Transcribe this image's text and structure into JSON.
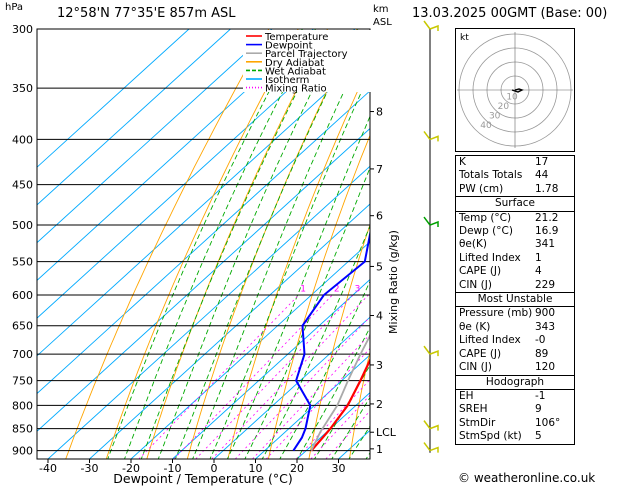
{
  "header": {
    "location": "12°58'N  77°35'E  857m  ASL",
    "datetime": "13.03.2025  00GMT  (Base: 00)",
    "pressure_unit": "hPa",
    "height_unit_km": "km",
    "height_unit_asl": "ASL"
  },
  "chart_data": {
    "type": "line",
    "xlabel": "Dewpoint / Temperature (°C)",
    "ylabel_right": "Mixing Ratio (g/kg)",
    "x_ticks": [
      "-40",
      "-30",
      "-20",
      "-10",
      "0",
      "10",
      "20",
      "30"
    ],
    "xlim": [
      -42,
      38
    ],
    "pressure_levels": [
      "300",
      "350",
      "400",
      "450",
      "500",
      "550",
      "600",
      "650",
      "700",
      "750",
      "800",
      "850",
      "900"
    ],
    "plim": [
      300,
      920
    ],
    "height_km_ticks": [
      {
        "label": "8",
        "p": 372
      },
      {
        "label": "7",
        "p": 432
      },
      {
        "label": "6",
        "p": 488
      },
      {
        "label": "5",
        "p": 557
      },
      {
        "label": "4",
        "p": 633
      },
      {
        "label": "3",
        "p": 720
      },
      {
        "label": "2",
        "p": 797
      },
      {
        "label": "LCL",
        "p": 858
      },
      {
        "label": "1",
        "p": 896
      }
    ],
    "mixing_ratio_labels": [
      {
        "label": "1",
        "g": 1
      },
      {
        "label": "2",
        "g": 2
      },
      {
        "label": "3",
        "g": 3
      },
      {
        "label": "4",
        "g": 4
      },
      {
        "label": "6",
        "g": 6
      },
      {
        "label": "8",
        "g": 8
      },
      {
        "label": "10",
        "g": 10
      },
      {
        "label": "16",
        "g": 16
      },
      {
        "label": "20",
        "g": 20
      },
      {
        "label": "25",
        "g": 25
      }
    ],
    "legend": [
      "Temperature",
      "Dewpoint",
      "Parcel Trajectory",
      "Dry Adiabat",
      "Wet Adiabat",
      "Isotherm",
      "Mixing Ratio"
    ],
    "colors": {
      "temperature": "#ff0000",
      "dewpoint": "#0000ff",
      "parcel": "#aaaaaa",
      "dry_adiabat": "#ffa500",
      "wet_adiabat": "#00aa00",
      "isotherm": "#00aaff",
      "mixing_ratio": "#ff00ff"
    },
    "series": [
      {
        "name": "Temperature",
        "points": [
          [
            21.2,
            900
          ],
          [
            20.5,
            870
          ],
          [
            20.0,
            850
          ],
          [
            18.0,
            800
          ],
          [
            14.5,
            750
          ],
          [
            10.5,
            700
          ],
          [
            6.5,
            650
          ],
          [
            2.5,
            600
          ],
          [
            -2.5,
            550
          ],
          [
            -7.5,
            500
          ],
          [
            -13.0,
            450
          ],
          [
            -19.0,
            400
          ],
          [
            -26.5,
            350
          ],
          [
            -34.0,
            305
          ]
        ]
      },
      {
        "name": "Dewpoint",
        "points": [
          [
            16.9,
            900
          ],
          [
            15.5,
            870
          ],
          [
            14.0,
            850
          ],
          [
            9.0,
            800
          ],
          [
            -1.0,
            750
          ],
          [
            -6.0,
            700
          ],
          [
            -14.0,
            650
          ],
          [
            -17.0,
            600
          ],
          [
            -16.0,
            550
          ],
          [
            -24.0,
            500
          ],
          [
            -33.0,
            450
          ],
          [
            -38.0,
            400
          ],
          [
            -41.0,
            350
          ],
          [
            -27.0,
            300
          ]
        ]
      },
      {
        "name": "Parcel Trajectory",
        "points": [
          [
            21.2,
            900
          ],
          [
            18.5,
            858
          ],
          [
            15.5,
            800
          ],
          [
            11.5,
            750
          ],
          [
            7.5,
            700
          ],
          [
            3.5,
            650
          ],
          [
            -1.0,
            600
          ],
          [
            -5.5,
            550
          ],
          [
            -10.5,
            500
          ],
          [
            -16.0,
            450
          ],
          [
            -22.0,
            400
          ],
          [
            -29.0,
            350
          ],
          [
            -37.0,
            305
          ]
        ]
      }
    ]
  },
  "hodograph": {
    "label": "kt",
    "ring_labels": [
      "10",
      "20",
      "30",
      "40"
    ]
  },
  "indices": [
    {
      "label": "K",
      "value": "17"
    },
    {
      "label": "Totals Totals",
      "value": "44"
    },
    {
      "label": "PW (cm)",
      "value": "1.78"
    }
  ],
  "surface": {
    "title": "Surface",
    "rows": [
      {
        "label": "Temp (°C)",
        "value": "21.2"
      },
      {
        "label": "Dewp (°C)",
        "value": "16.9"
      },
      {
        "label": "θe(K)",
        "value": "341"
      },
      {
        "label": "Lifted Index",
        "value": "1"
      },
      {
        "label": "CAPE (J)",
        "value": "4"
      },
      {
        "label": "CIN (J)",
        "value": "229"
      }
    ]
  },
  "most_unstable": {
    "title": "Most Unstable",
    "rows": [
      {
        "label": "Pressure (mb)",
        "value": "900"
      },
      {
        "label": "θe (K)",
        "value": "343"
      },
      {
        "label": "Lifted Index",
        "value": "-0"
      },
      {
        "label": "CAPE (J)",
        "value": "89"
      },
      {
        "label": "CIN (J)",
        "value": "120"
      }
    ]
  },
  "hodograph_table": {
    "title": "Hodograph",
    "rows": [
      {
        "label": "EH",
        "value": "-1"
      },
      {
        "label": "SREH",
        "value": "9"
      },
      {
        "label": "StmDir",
        "value": "106°"
      },
      {
        "label": "StmSpd (kt)",
        "value": "5"
      }
    ]
  },
  "credit": "© weatheronline.co.uk"
}
